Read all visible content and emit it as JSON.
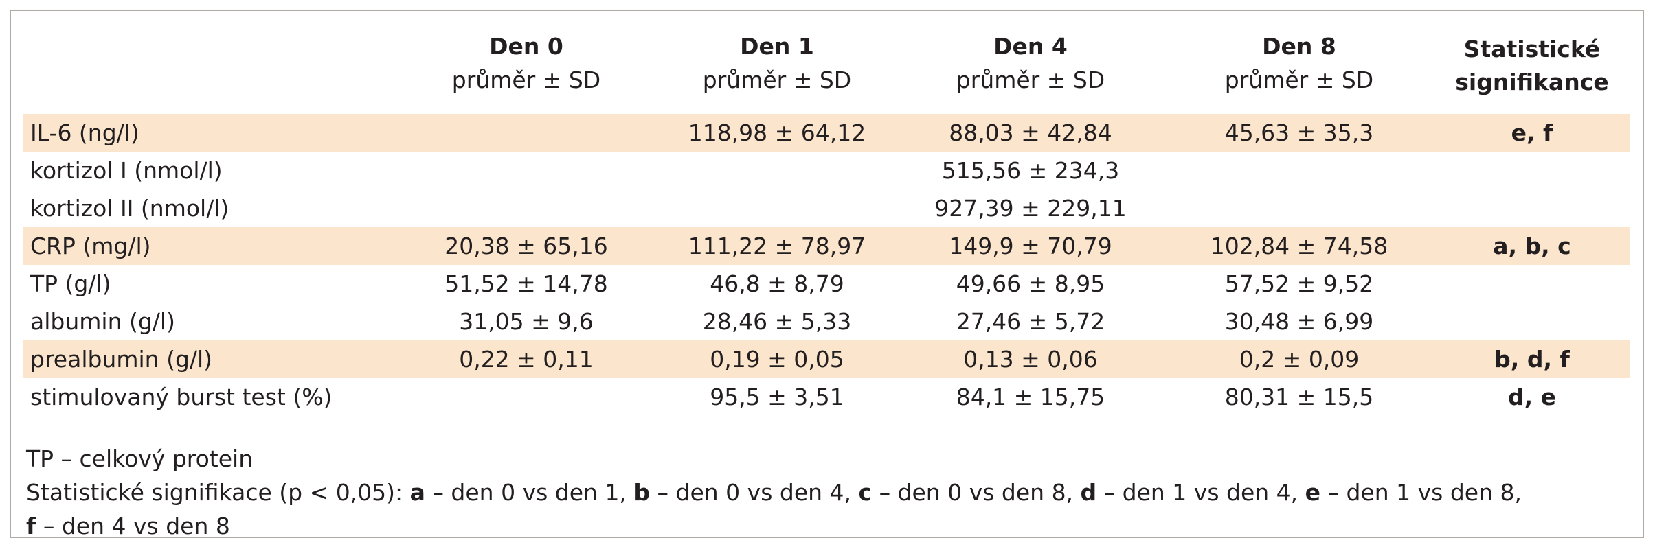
{
  "columns": [
    {
      "title": "",
      "subtitle": ""
    },
    {
      "title": "Den 0",
      "subtitle": "průměr ± SD"
    },
    {
      "title": "Den 1",
      "subtitle": "průměr ± SD"
    },
    {
      "title": "Den 4",
      "subtitle": "průměr ± SD"
    },
    {
      "title": "Den 8",
      "subtitle": "průměr ± SD"
    },
    {
      "title": "Statistické",
      "subtitle": "signifikance"
    }
  ],
  "rows": [
    {
      "label": "IL-6 (ng/l)",
      "d0": "",
      "d1": "118,98 ± 64,12",
      "d4": "88,03 ± 42,84",
      "d8": "45,63 ± 35,3",
      "sig": "e, f",
      "highlight": true
    },
    {
      "label": "kortizol I (nmol/l)",
      "d0": "",
      "d1": "",
      "d4": "515,56 ± 234,3",
      "d8": "",
      "sig": "",
      "highlight": false
    },
    {
      "label": "kortizol II (nmol/l)",
      "d0": "",
      "d1": "",
      "d4": "927,39 ± 229,11",
      "d8": "",
      "sig": "",
      "highlight": false
    },
    {
      "label": "CRP (mg/l)",
      "d0": "20,38 ± 65,16",
      "d1": "111,22 ± 78,97",
      "d4": "149,9 ± 70,79",
      "d8": "102,84 ± 74,58",
      "sig": "a, b, c",
      "highlight": true
    },
    {
      "label": "TP (g/l)",
      "d0": "51,52 ± 14,78",
      "d1": "46,8 ± 8,79",
      "d4": "49,66 ± 8,95",
      "d8": "57,52 ± 9,52",
      "sig": "",
      "highlight": false
    },
    {
      "label": "albumin (g/l)",
      "d0": "31,05 ± 9,6",
      "d1": "28,46 ± 5,33",
      "d4": "27,46 ± 5,72",
      "d8": "30,48 ± 6,99",
      "sig": "",
      "highlight": false
    },
    {
      "label": "prealbumin (g/l)",
      "d0": "0,22 ± 0,11",
      "d1": "0,19 ± 0,05",
      "d4": "0,13 ± 0,06",
      "d8": "0,2 ± 0,09",
      "sig": "b, d, f",
      "highlight": true
    },
    {
      "label": "stimulovaný burst test (%)",
      "d0": "",
      "d1": "95,5 ± 3,51",
      "d4": "84,1 ± 15,75",
      "d8": "80,31 ± 15,5",
      "sig": "d, e",
      "highlight": false
    }
  ],
  "notes": {
    "tp_note": "TP – celkový protein",
    "sig_intro": "Statistické signifikace (p < 0,05): ",
    "sig_items": [
      {
        "key": "a",
        "text": " – den 0 vs den 1, "
      },
      {
        "key": "b",
        "text": " – den 0 vs den 4, "
      },
      {
        "key": "c",
        "text": " – den 0 vs den 8, "
      },
      {
        "key": "d",
        "text": " – den 1 vs den 4, "
      },
      {
        "key": "e",
        "text": " – den 1 vs den 8, "
      },
      {
        "key": "f",
        "text": " – den 4 vs den 8"
      }
    ]
  },
  "colors": {
    "highlight_row": "#fbe5cc",
    "border": "#b0aaa5",
    "text": "#231f20"
  }
}
